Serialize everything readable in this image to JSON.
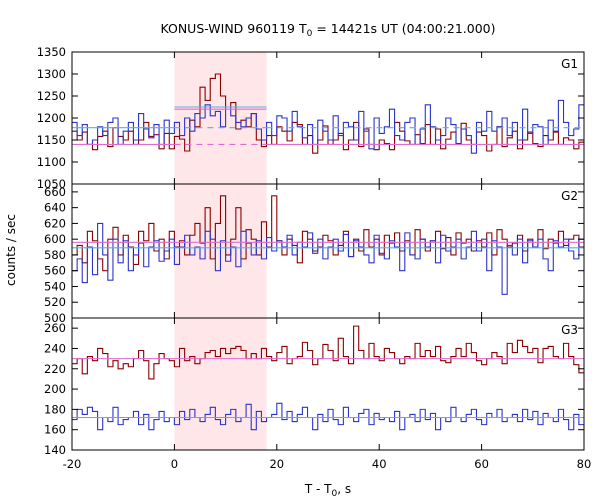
{
  "title": {
    "prefix": "KONUS-WIND 960119 T",
    "sub": "0",
    "suffix": " = 14421s UT (04:00:21.000)"
  },
  "xlabel": {
    "prefix": "T - T",
    "sub": "0",
    "suffix": ", s"
  },
  "ylabel": "counts / sec",
  "colors": {
    "series_red": "#8b0000",
    "series_blue": "#2b35c8",
    "fit_red": "#e06ccd",
    "fit_blue": "#4fb3e8",
    "highlight": "#ffe6e9"
  },
  "chart_data": {
    "type": "line",
    "shared_x": {
      "xlim": [
        -20,
        80
      ],
      "ticks": [
        -20,
        0,
        20,
        40,
        60,
        80
      ],
      "tick_labels": [
        "-20",
        "0",
        "20",
        "40",
        "60",
        "80"
      ]
    },
    "highlight_x": [
      0,
      18
    ],
    "panels": [
      {
        "label": "G1",
        "ylim": [
          1050,
          1350
        ],
        "yticks": [
          1050,
          1100,
          1150,
          1200,
          1250,
          1300,
          1350
        ],
        "ytick_labels": [
          "1050",
          "1100",
          "1150",
          "1200",
          "1250",
          "1300",
          "1350"
        ],
        "step": 1,
        "x_start": -20,
        "series": [
          {
            "color_key": "series_red",
            "values": [
              1170,
              1150,
              1168,
              1140,
              1128,
              1158,
              1170,
              1135,
              1178,
              1158,
              1150,
              1170,
              1140,
              1150,
              1190,
              1158,
              1162,
              1130,
              1165,
              1130,
              1158,
              1152,
              1125,
              1195,
              1180,
              1270,
              1240,
              1290,
              1300,
              1250,
              1225,
              1235,
              1175,
              1195,
              1180,
              1210,
              1150,
              1135,
              1160,
              1140,
              1180,
              1170,
              1148,
              1190,
              1185,
              1140,
              1160,
              1120,
              1150,
              1182,
              1140,
              1150,
              1165,
              1128,
              1150,
              1190,
              1135,
              1175,
              1140,
              1128,
              1150,
              1142,
              1128,
              1190,
              1170,
              1148,
              1140,
              1162,
              1142,
              1185,
              1140,
              1175,
              1130,
              1152,
              1168,
              1142,
              1188,
              1150,
              1140,
              1168,
              1160,
              1125,
              1140,
              1180,
              1135,
              1155,
              1170,
              1130,
              1150,
              1168,
              1142,
              1135,
              1160,
              1150,
              1168,
              1140,
              1155,
              1150,
              1130,
              1145
            ]
          },
          {
            "color_key": "series_blue",
            "values": [
              1190,
              1160,
              1185,
              1140,
              1150,
              1180,
              1160,
              1190,
              1200,
              1140,
              1170,
              1190,
              1150,
              1210,
              1175,
              1155,
              1185,
              1140,
              1195,
              1165,
              1190,
              1160,
              1200,
              1170,
              1210,
              1200,
              1230,
              1205,
              1215,
              1180,
              1225,
              1205,
              1190,
              1180,
              1200,
              1210,
              1175,
              1150,
              1190,
              1160,
              1205,
              1200,
              1170,
              1215,
              1180,
              1155,
              1185,
              1140,
              1195,
              1170,
              1150,
              1205,
              1160,
              1190,
              1180,
              1150,
              1215,
              1170,
              1130,
              1200,
              1165,
              1180,
              1220,
              1160,
              1150,
              1190,
              1200,
              1140,
              1175,
              1230,
              1180,
              1150,
              1160,
              1200,
              1185,
              1140,
              1175,
              1160,
              1120,
              1190,
              1170,
              1215,
              1170,
              1180,
              1200,
              1160,
              1190,
              1150,
              1220,
              1165,
              1185,
              1180,
              1140,
              1195,
              1170,
              1240,
              1190,
              1160,
              1175,
              1230
            ]
          }
        ],
        "fits": [
          {
            "color_key": "fit_red",
            "style": "solid",
            "x": [
              -20,
              0
            ],
            "y": 1140
          },
          {
            "color_key": "fit_red",
            "style": "dashed",
            "x": [
              0,
              18
            ],
            "y": 1140
          },
          {
            "color_key": "fit_red",
            "style": "solid",
            "x": [
              0,
              18
            ],
            "y": 1220
          },
          {
            "color_key": "fit_red",
            "style": "solid",
            "x": [
              18,
              80
            ],
            "y": 1140
          },
          {
            "color_key": "fit_blue",
            "style": "solid",
            "x": [
              -20,
              0
            ],
            "y": 1178
          },
          {
            "color_key": "fit_blue",
            "style": "dashed",
            "x": [
              0,
              18
            ],
            "y": 1178
          },
          {
            "color_key": "fit_blue",
            "style": "solid",
            "x": [
              0,
              18
            ],
            "y": 1225
          },
          {
            "color_key": "fit_blue",
            "style": "dashed",
            "x": [
              18,
              80
            ],
            "y": 1178
          }
        ]
      },
      {
        "label": "G2",
        "ylim": [
          500,
          670
        ],
        "yticks": [
          500,
          520,
          540,
          560,
          580,
          600,
          620,
          640,
          660
        ],
        "ytick_labels": [
          "500",
          "520",
          "540",
          "560",
          "580",
          "600",
          "620",
          "640",
          "660"
        ],
        "step": 1,
        "x_start": -20,
        "series": [
          {
            "color_key": "series_red",
            "values": [
              580,
              592,
              570,
              610,
              598,
              575,
              560,
              600,
              615,
              580,
              605,
              590,
              568,
              610,
              598,
              620,
              585,
              600,
              575,
              610,
              590,
              598,
              580,
              605,
              620,
              595,
              640,
              575,
              620,
              655,
              580,
              600,
              640,
              575,
              612,
              600,
              580,
              622,
              590,
              655,
              598,
              580,
              600,
              592,
              570,
              610,
              600,
              585,
              590,
              605,
              598,
              580,
              592,
              610,
              578,
              600,
              585,
              612,
              590,
              600,
              580,
              605,
              595,
              608,
              585,
              598,
              580,
              612,
              600,
              585,
              598,
              610,
              588,
              602,
              580,
              608,
              595,
              600,
              585,
              598,
              590,
              608,
              580,
              612,
              600,
              590,
              595,
              605,
              585,
              600,
              590,
              612,
              588,
              600,
              595,
              610,
              592,
              600,
              605,
              590
            ]
          },
          {
            "color_key": "series_blue",
            "values": [
              560,
              575,
              545,
              590,
              555,
              620,
              580,
              548,
              600,
              570,
              598,
              560,
              580,
              595,
              565,
              590,
              598,
              572,
              585,
              600,
              568,
              590,
              605,
              580,
              590,
              575,
              610,
              600,
              560,
              598,
              572,
              590,
              565,
              610,
              595,
              580,
              598,
              575,
              602,
              585,
              598,
              590,
              605,
              580,
              596,
              590,
              608,
              582,
              600,
              575,
              590,
              600,
              585,
              606,
              578,
              598,
              590,
              580,
              570,
              605,
              582,
              575,
              598,
              590,
              560,
              608,
              580,
              575,
              600,
              590,
              598,
              570,
              605,
              585,
              590,
              600,
              575,
              590,
              610,
              585,
              600,
              560,
              598,
              590,
              530,
              592,
              580,
              600,
              570,
              598,
              590,
              600,
              575,
              560,
              598,
              590,
              600,
              585,
              575,
              600
            ]
          }
        ],
        "fits": [
          {
            "color_key": "fit_red",
            "style": "solid",
            "x": [
              -20,
              80
            ],
            "y": 596
          },
          {
            "color_key": "fit_blue",
            "style": "solid",
            "x": [
              -20,
              80
            ],
            "y": 589
          }
        ]
      },
      {
        "label": "G3",
        "ylim": [
          140,
          270
        ],
        "yticks": [
          140,
          160,
          180,
          200,
          220,
          240,
          260
        ],
        "ytick_labels": [
          "140",
          "160",
          "180",
          "200",
          "220",
          "240",
          "260"
        ],
        "step": 1,
        "x_start": -20,
        "series": [
          {
            "color_key": "series_red",
            "values": [
              225,
              230,
              215,
              232,
              228,
              240,
              235,
              222,
              228,
              220,
              225,
              222,
              230,
              238,
              228,
              210,
              225,
              235,
              230,
              228,
              222,
              240,
              228,
              232,
              225,
              230,
              236,
              238,
              232,
              240,
              235,
              240,
              242,
              238,
              230,
              235,
              230,
              240,
              232,
              228,
              236,
              242,
              225,
              230,
              232,
              246,
              238,
              224,
              230,
              244,
              238,
              228,
              250,
              232,
              225,
              262,
              238,
              230,
              245,
              232,
              228,
              240,
              236,
              230,
              225,
              232,
              230,
              245,
              232,
              238,
              232,
              242,
              228,
              226,
              232,
              240,
              232,
              245,
              236,
              228,
              224,
              230,
              236,
              232,
              225,
              245,
              236,
              248,
              242,
              236,
              240,
              226,
              240,
              242,
              232,
              230,
              245,
              232,
              224,
              216
            ]
          },
          {
            "color_key": "series_blue",
            "values": [
              170,
              180,
              175,
              182,
              178,
              160,
              172,
              168,
              182,
              165,
              170,
              172,
              178,
              165,
              175,
              160,
              170,
              178,
              168,
              172,
              165,
              178,
              170,
              180,
              172,
              168,
              175,
              182,
              170,
              165,
              175,
              180,
              168,
              172,
              185,
              160,
              178,
              168,
              172,
              175,
              186,
              170,
              178,
              168,
              175,
              182,
              172,
              160,
              175,
              168,
              180,
              170,
              165,
              182,
              172,
              168,
              176,
              180,
              165,
              176,
              170,
              172,
              168,
              178,
              160,
              172,
              175,
              168,
              180,
              170,
              176,
              160,
              172,
              168,
              182,
              172,
              168,
              175,
              180,
              170,
              165,
              176,
              172,
              180,
              168,
              172,
              175,
              168,
              180,
              170,
              178,
              165,
              176,
              172,
              168,
              180,
              170,
              160,
              175,
              165
            ]
          }
        ],
        "fits": [
          {
            "color_key": "fit_red",
            "style": "solid",
            "x": [
              -20,
              80
            ],
            "y": 230
          },
          {
            "color_key": "fit_blue",
            "style": "solid",
            "x": [
              -20,
              80
            ],
            "y": 172
          }
        ]
      }
    ]
  }
}
